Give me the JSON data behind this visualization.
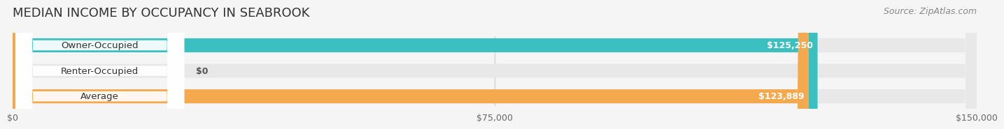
{
  "title": "MEDIAN INCOME BY OCCUPANCY IN SEABROOK",
  "source": "Source: ZipAtlas.com",
  "categories": [
    "Owner-Occupied",
    "Renter-Occupied",
    "Average"
  ],
  "values": [
    125250,
    0,
    123889
  ],
  "bar_colors": [
    "#3bbfbf",
    "#c9a8d4",
    "#f5a94e"
  ],
  "label_colors": [
    "#ffffff",
    "#555555",
    "#ffffff"
  ],
  "value_labels": [
    "$125,250",
    "$0",
    "$123,889"
  ],
  "max_value": 150000,
  "xticks": [
    0,
    75000,
    150000
  ],
  "xtick_labels": [
    "$0",
    "$75,000",
    "$150,000"
  ],
  "background_color": "#f5f5f5",
  "bar_bg_color": "#e8e8e8",
  "title_fontsize": 13,
  "source_fontsize": 9,
  "bar_height": 0.55,
  "bar_gap": 0.15
}
